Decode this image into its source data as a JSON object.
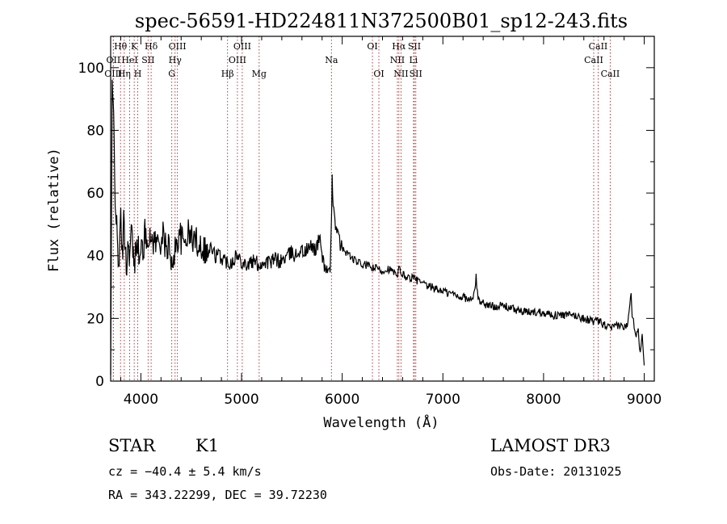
{
  "chart_data": {
    "type": "line",
    "title": "spec-56591-HD224811N372500B01_sp12-243.fits",
    "xlabel": "Wavelength (Å)",
    "ylabel": "Flux (relative)",
    "xlim": [
      3700,
      9100
    ],
    "ylim": [
      0,
      110
    ],
    "xticks": [
      4000,
      5000,
      6000,
      7000,
      8000,
      9000
    ],
    "yticks": [
      0,
      20,
      40,
      60,
      80,
      100
    ],
    "series": [
      {
        "name": "spectrum",
        "x": [
          3700,
          3715,
          3730,
          3745,
          3760,
          3775,
          3790,
          3800,
          3815,
          3830,
          3845,
          3860,
          3875,
          3890,
          3905,
          3920,
          3935,
          3950,
          3965,
          3980,
          3995,
          4010,
          4025,
          4040,
          4055,
          4070,
          4085,
          4100,
          4130,
          4160,
          4190,
          4220,
          4250,
          4280,
          4300,
          4320,
          4340,
          4360,
          4380,
          4400,
          4430,
          4460,
          4500,
          4540,
          4580,
          4620,
          4660,
          4700,
          4740,
          4780,
          4820,
          4860,
          4900,
          4940,
          4980,
          5020,
          5060,
          5100,
          5140,
          5180,
          5220,
          5260,
          5300,
          5340,
          5380,
          5420,
          5460,
          5500,
          5540,
          5580,
          5620,
          5660,
          5700,
          5740,
          5780,
          5810,
          5840,
          5860,
          5880,
          5890,
          5900,
          5910,
          5920,
          5940,
          5960,
          5980,
          6000,
          6050,
          6100,
          6150,
          6200,
          6250,
          6300,
          6350,
          6400,
          6450,
          6500,
          6550,
          6563,
          6580,
          6600,
          6650,
          6700,
          6750,
          6800,
          6850,
          6900,
          6950,
          7000,
          7050,
          7100,
          7150,
          7200,
          7250,
          7300,
          7330,
          7350,
          7400,
          7450,
          7500,
          7600,
          7700,
          7800,
          7900,
          8000,
          8100,
          8200,
          8300,
          8400,
          8500,
          8550,
          8600,
          8650,
          8700,
          8750,
          8800,
          8830,
          8850,
          8870,
          8880,
          8900,
          8920,
          8940,
          8960,
          8980,
          9000
        ],
        "values": [
          2,
          92,
          84,
          60,
          48,
          38,
          42,
          52,
          40,
          50,
          44,
          36,
          45,
          40,
          48,
          42,
          35,
          44,
          46,
          40,
          38,
          44,
          42,
          47,
          45,
          48,
          43,
          46,
          45,
          44,
          45,
          46,
          42,
          44,
          34,
          40,
          42,
          44,
          48,
          45,
          44,
          47,
          46,
          45,
          44,
          43,
          41,
          42,
          40,
          40,
          39,
          38,
          38,
          40,
          39,
          38,
          37,
          38,
          38,
          37,
          38,
          38,
          38,
          39,
          38,
          39,
          40,
          41,
          40,
          42,
          41,
          42,
          43,
          42,
          46,
          38,
          36,
          35,
          34,
          45,
          64,
          58,
          55,
          48,
          46,
          44,
          42,
          41,
          39,
          38,
          37,
          37,
          36,
          36,
          35,
          36,
          35,
          33,
          36,
          35,
          34,
          33,
          33,
          32,
          31,
          30,
          30,
          29,
          29,
          28,
          28,
          27,
          27,
          26,
          26,
          33,
          26,
          25,
          24,
          24,
          24,
          23,
          22,
          22,
          22,
          21,
          21,
          21,
          20,
          19,
          19,
          18,
          17,
          17,
          18,
          17,
          18,
          23,
          29,
          21,
          18,
          15,
          17,
          8,
          16,
          5
        ]
      }
    ],
    "line_markers": [
      {
        "label": "Hθ",
        "x": 3798,
        "row": 0
      },
      {
        "label": "OII",
        "x": 3727,
        "row": 1
      },
      {
        "label": "OIII",
        "x": 3726,
        "row": 2
      },
      {
        "label": "K",
        "x": 3934,
        "row": 0
      },
      {
        "label": "HeI",
        "x": 3889,
        "row": 1
      },
      {
        "label": "Hη",
        "x": 3835,
        "row": 2
      },
      {
        "label": "SII",
        "x": 4072,
        "row": 1
      },
      {
        "label": "H",
        "x": 3969,
        "row": 2
      },
      {
        "label": "Hδ",
        "x": 4102,
        "row": 0
      },
      {
        "label": "OIII",
        "x": 4363,
        "row": 0
      },
      {
        "label": "Hγ",
        "x": 4340,
        "row": 1
      },
      {
        "label": "G",
        "x": 4307,
        "row": 2
      },
      {
        "label": "Hβ",
        "x": 4861,
        "row": 2
      },
      {
        "label": "OIII",
        "x": 5007,
        "row": 0
      },
      {
        "label": "OIII",
        "x": 4959,
        "row": 1
      },
      {
        "label": "Mg",
        "x": 5175,
        "row": 2
      },
      {
        "label": "Na",
        "x": 5893,
        "row": 1
      },
      {
        "label": "OI",
        "x": 6300,
        "row": 0
      },
      {
        "label": "OI",
        "x": 6364,
        "row": 2
      },
      {
        "label": "Hα",
        "x": 6563,
        "row": 0
      },
      {
        "label": "SII",
        "x": 6717,
        "row": 0
      },
      {
        "label": "NII",
        "x": 6548,
        "row": 1
      },
      {
        "label": "Li",
        "x": 6708,
        "row": 1
      },
      {
        "label": "NII",
        "x": 6584,
        "row": 2
      },
      {
        "label": "SII",
        "x": 6731,
        "row": 2
      },
      {
        "label": "CaII",
        "x": 8542,
        "row": 0
      },
      {
        "label": "CaII",
        "x": 8498,
        "row": 1
      },
      {
        "label": "CaII",
        "x": 8662,
        "row": 2
      }
    ]
  },
  "info": {
    "object_class": "STAR",
    "subclass": "K1",
    "redshift": "cz = −40.4 ± 5.4 km/s",
    "coords": "RA = 343.22299, DEC =  39.72230",
    "survey": "LAMOST DR3",
    "obs_date": "Obs-Date: 20131025"
  }
}
